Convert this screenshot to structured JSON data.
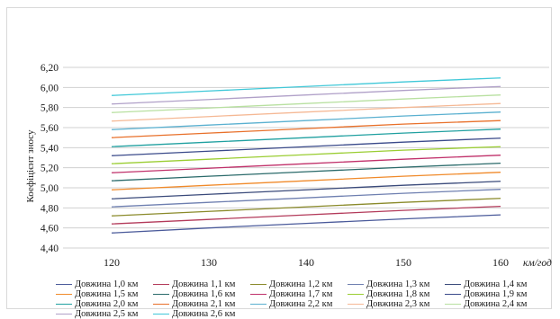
{
  "chart_data": {
    "type": "line",
    "ylabel": "Коефіцієнт зносу",
    "xunit": "км/год",
    "x": [
      120,
      130,
      140,
      150,
      160
    ],
    "xticks": [
      "120",
      "130",
      "140",
      "150",
      "160"
    ],
    "yticks": [
      "4,40",
      "4,60",
      "4,80",
      "5,00",
      "5,20",
      "5,40",
      "5,60",
      "5,80",
      "6,00",
      "6,20"
    ],
    "ylim": [
      4.4,
      6.2
    ],
    "xlim": [
      115,
      165
    ],
    "grid": "horizontal",
    "legend_position": "bottom",
    "series": [
      {
        "name": "Довжина 1,0 км",
        "color": "#4a5a9a",
        "values": [
          4.55,
          4.6,
          4.645,
          4.69,
          4.73
        ]
      },
      {
        "name": "Довжина 1,1 км",
        "color": "#b33a5a",
        "values": [
          4.64,
          4.685,
          4.73,
          4.775,
          4.815
        ]
      },
      {
        "name": "Довжина 1,2 км",
        "color": "#8a8a2a",
        "values": [
          4.72,
          4.765,
          4.81,
          4.855,
          4.895
        ]
      },
      {
        "name": "Довжина 1,3 км",
        "color": "#6e7fb0",
        "values": [
          4.81,
          4.855,
          4.9,
          4.945,
          4.985
        ]
      },
      {
        "name": "Довжина 1,4 км",
        "color": "#3a4a7a",
        "values": [
          4.89,
          4.935,
          4.98,
          5.025,
          5.065
        ]
      },
      {
        "name": "Довжина 1,5 км",
        "color": "#f08a2a",
        "values": [
          4.98,
          5.025,
          5.07,
          5.115,
          5.155
        ]
      },
      {
        "name": "Довжина 1,6 км",
        "color": "#2a6a6a",
        "values": [
          5.07,
          5.115,
          5.16,
          5.205,
          5.245
        ]
      },
      {
        "name": "Довжина 1,7 км",
        "color": "#c0306a",
        "values": [
          5.15,
          5.195,
          5.24,
          5.285,
          5.325
        ]
      },
      {
        "name": "Довжина 1,8 км",
        "color": "#9acd32",
        "values": [
          5.24,
          5.285,
          5.33,
          5.375,
          5.41
        ]
      },
      {
        "name": "Довжина 1,9 км",
        "color": "#3a4a8a",
        "values": [
          5.32,
          5.365,
          5.41,
          5.455,
          5.495
        ]
      },
      {
        "name": "Довжина 2,0 км",
        "color": "#20a0a0",
        "values": [
          5.41,
          5.455,
          5.5,
          5.545,
          5.585
        ]
      },
      {
        "name": "Довжина 2,1 км",
        "color": "#e8702a",
        "values": [
          5.5,
          5.545,
          5.59,
          5.635,
          5.67
        ]
      },
      {
        "name": "Довжина 2,2 км",
        "color": "#5ab0d0",
        "values": [
          5.58,
          5.625,
          5.67,
          5.715,
          5.755
        ]
      },
      {
        "name": "Довжина 2,3 км",
        "color": "#f5b894",
        "values": [
          5.665,
          5.71,
          5.755,
          5.8,
          5.84
        ]
      },
      {
        "name": "Довжина 2,4 км",
        "color": "#b8e0a0",
        "values": [
          5.75,
          5.795,
          5.84,
          5.885,
          5.925
        ]
      },
      {
        "name": "Довжина 2,5 км",
        "color": "#b0a0c8",
        "values": [
          5.835,
          5.88,
          5.925,
          5.97,
          6.01
        ]
      },
      {
        "name": "Довжина 2,6 км",
        "color": "#40c8d8",
        "values": [
          5.92,
          5.965,
          6.01,
          6.055,
          6.095
        ]
      }
    ]
  }
}
